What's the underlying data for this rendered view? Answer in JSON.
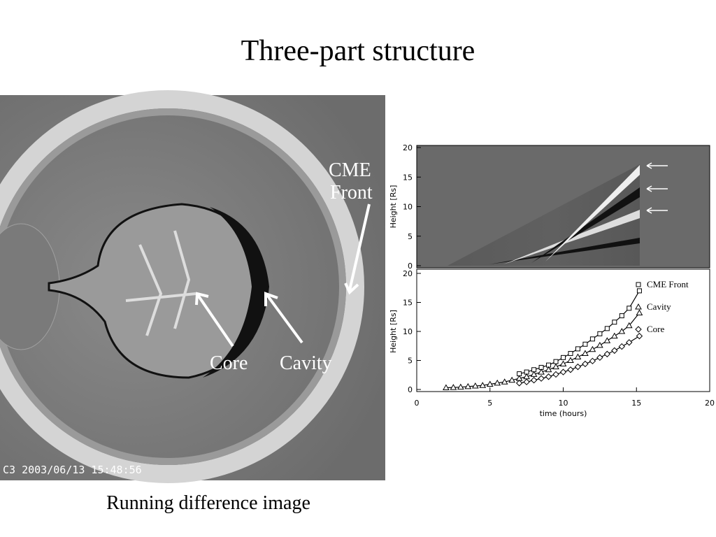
{
  "title": "Three-part structure",
  "figure": {
    "labels": [
      "CME",
      "Front",
      "Core",
      "Cavity"
    ],
    "timestamp": "C3 2003/06/13 15:48:56",
    "caption": "Running difference image"
  },
  "chart_data": [
    {
      "type": "image",
      "ylabel": "Height [Rs]",
      "ylim": [
        0,
        20
      ],
      "yticks": [
        0,
        5,
        10,
        15,
        20
      ]
    },
    {
      "type": "line",
      "xlabel": "time (hours)",
      "ylabel": "Height [Rs]",
      "xlim": [
        0,
        20
      ],
      "ylim": [
        0,
        20
      ],
      "xticks": [
        0,
        5,
        10,
        15,
        20
      ],
      "yticks": [
        0,
        5,
        10,
        15,
        20
      ],
      "series": [
        {
          "name": "CME Front",
          "color": "#000000",
          "marker": "square",
          "x": [
            7,
            7.5,
            8,
            8.5,
            9,
            9.5,
            10,
            10.5,
            11,
            11.5,
            12,
            12.5,
            13,
            13.5,
            14,
            14.5,
            15.2
          ],
          "values": [
            2.7,
            3,
            3.4,
            3.8,
            4.2,
            4.8,
            5.5,
            6.2,
            7,
            7.8,
            8.7,
            9.6,
            10.5,
            11.6,
            12.7,
            14,
            17
          ]
        },
        {
          "name": "Cavity",
          "color": "#000000",
          "marker": "triangle",
          "x": [
            2,
            2.5,
            3,
            3.5,
            4,
            4.5,
            5,
            5.5,
            6,
            6.5,
            7,
            7.5,
            8,
            8.5,
            9,
            9.5,
            10,
            10.5,
            11,
            11.5,
            12,
            12.5,
            13,
            13.5,
            14,
            14.5,
            15.2
          ],
          "values": [
            0.3,
            0.35,
            0.4,
            0.5,
            0.6,
            0.7,
            0.9,
            1.1,
            1.3,
            1.6,
            1.9,
            2.2,
            2.6,
            3,
            3.4,
            3.9,
            4.4,
            5,
            5.6,
            6.2,
            6.9,
            7.6,
            8.4,
            9.2,
            10,
            11,
            13.2
          ]
        },
        {
          "name": "Core",
          "color": "#000000",
          "marker": "diamond",
          "x": [
            7,
            7.5,
            8,
            8.5,
            9,
            9.5,
            10,
            10.5,
            11,
            11.5,
            12,
            12.5,
            13,
            13.5,
            14,
            14.5,
            15.2
          ],
          "values": [
            1.1,
            1.3,
            1.6,
            1.9,
            2.2,
            2.6,
            3,
            3.4,
            3.9,
            4.4,
            4.9,
            5.5,
            6.1,
            6.7,
            7.4,
            8.1,
            9.2
          ]
        }
      ]
    }
  ]
}
